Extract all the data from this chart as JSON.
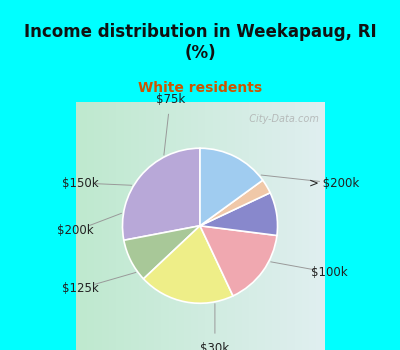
{
  "title": "Income distribution in Weekapaug, RI\n(%)",
  "subtitle": "White residents",
  "title_color": "#111111",
  "subtitle_color": "#cc5500",
  "bg_cyan": "#00ffff",
  "chart_bg_left": "#b8e8c8",
  "chart_bg_right": "#e8f0f8",
  "labels": [
    "> $200k",
    "$100k",
    "$30k",
    "$125k",
    "$200k",
    "$150k",
    "$75k"
  ],
  "values": [
    28,
    9,
    20,
    16,
    9,
    3,
    15
  ],
  "colors": [
    "#b8a8d8",
    "#a8c898",
    "#eeee88",
    "#f0a8b0",
    "#8888cc",
    "#f0c8a8",
    "#a0ccf0"
  ],
  "startangle": 90,
  "label_fontsize": 8.5,
  "title_fontsize": 12,
  "subtitle_fontsize": 10,
  "watermark": "  City-Data.com"
}
